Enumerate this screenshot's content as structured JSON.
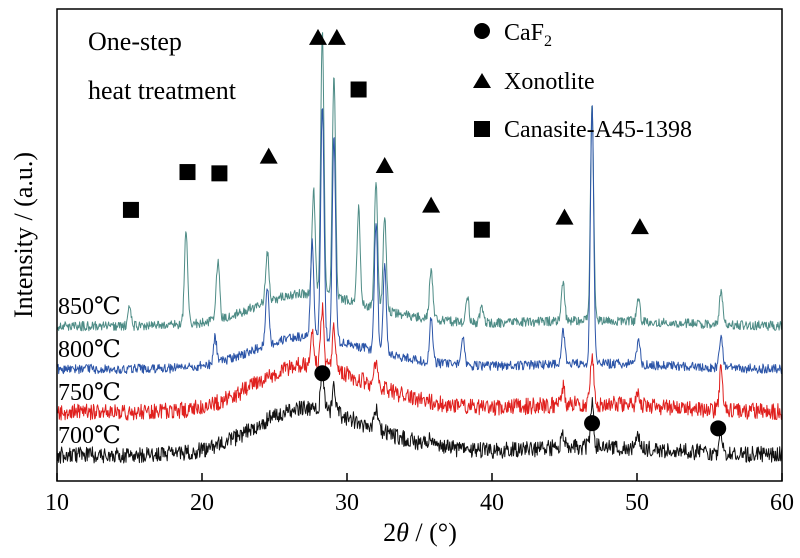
{
  "chart_data": {
    "type": "line",
    "xlabel": "2θ / (°)",
    "xlabel_parts": {
      "symbol": "2",
      "italic": "θ",
      "unit": " / (°)"
    },
    "ylabel": "Intensity / (a.u.)",
    "xlim": [
      10,
      60
    ],
    "xticks": [
      10,
      20,
      30,
      40,
      50,
      60
    ],
    "annotation_lines": [
      "One-step",
      "heat treatment"
    ],
    "legend": {
      "placement": "top-right",
      "entries": [
        {
          "marker": "circle",
          "label_main": "CaF",
          "label_sub": "2",
          "label": "CaF2"
        },
        {
          "marker": "triangle",
          "label": "Xonotlite"
        },
        {
          "marker": "square",
          "label": "Canasite-A45-1398"
        }
      ]
    },
    "series": [
      {
        "name": "850℃",
        "color": "#4e8c86",
        "offset": 0.3,
        "strong": false,
        "peaks": [
          [
            15.0,
            0.04
          ],
          [
            18.9,
            0.22
          ],
          [
            21.1,
            0.14
          ],
          [
            24.5,
            0.12
          ],
          [
            27.7,
            0.24
          ],
          [
            28.3,
            0.62
          ],
          [
            29.1,
            0.52
          ],
          [
            30.8,
            0.22
          ],
          [
            32.0,
            0.3
          ],
          [
            32.6,
            0.22
          ],
          [
            35.8,
            0.12
          ],
          [
            38.3,
            0.06
          ],
          [
            39.3,
            0.04
          ],
          [
            44.9,
            0.09
          ],
          [
            46.9,
            0.5
          ],
          [
            50.1,
            0.05
          ],
          [
            55.8,
            0.08
          ]
        ]
      },
      {
        "name": "800℃",
        "color": "#2c55a8",
        "offset": 0.2,
        "strong": false,
        "peaks": [
          [
            20.9,
            0.06
          ],
          [
            24.5,
            0.14
          ],
          [
            27.6,
            0.22
          ],
          [
            28.3,
            0.55
          ],
          [
            29.1,
            0.48
          ],
          [
            32.0,
            0.3
          ],
          [
            32.6,
            0.2
          ],
          [
            35.8,
            0.1
          ],
          [
            38.0,
            0.06
          ],
          [
            44.9,
            0.08
          ],
          [
            46.9,
            0.6
          ],
          [
            50.1,
            0.06
          ],
          [
            55.8,
            0.08
          ]
        ]
      },
      {
        "name": "750℃",
        "color": "#e0201e",
        "offset": 0.1,
        "strong": true,
        "peaks": [
          [
            27.6,
            0.08
          ],
          [
            28.3,
            0.14
          ],
          [
            29.1,
            0.1
          ],
          [
            32.0,
            0.06
          ],
          [
            44.9,
            0.04
          ],
          [
            46.9,
            0.12
          ],
          [
            50.1,
            0.03
          ],
          [
            55.8,
            0.1
          ]
        ]
      },
      {
        "name": "700℃",
        "color": "#111111",
        "offset": 0.0,
        "strong": true,
        "peaks": [
          [
            28.3,
            0.1
          ],
          [
            29.1,
            0.06
          ],
          [
            32.0,
            0.05
          ],
          [
            35.8,
            0.02
          ],
          [
            44.9,
            0.03
          ],
          [
            46.9,
            0.1
          ],
          [
            50.1,
            0.03
          ],
          [
            55.8,
            0.04
          ]
        ]
      }
    ],
    "markers": [
      {
        "type": "circle",
        "x": 28.3,
        "y": 0.19
      },
      {
        "type": "circle",
        "x": 46.9,
        "y": 0.074
      },
      {
        "type": "circle",
        "x": 55.6,
        "y": 0.062
      },
      {
        "type": "triangle",
        "x": 28.0,
        "y": 0.97
      },
      {
        "type": "triangle",
        "x": 29.3,
        "y": 0.97
      },
      {
        "type": "triangle",
        "x": 24.6,
        "y": 0.694
      },
      {
        "type": "triangle",
        "x": 32.6,
        "y": 0.672
      },
      {
        "type": "triangle",
        "x": 35.8,
        "y": 0.58
      },
      {
        "type": "triangle",
        "x": 45.0,
        "y": 0.552
      },
      {
        "type": "triangle",
        "x": 50.2,
        "y": 0.53
      },
      {
        "type": "square",
        "x": 30.8,
        "y": 0.85
      },
      {
        "type": "square",
        "x": 19.0,
        "y": 0.658
      },
      {
        "type": "square",
        "x": 21.2,
        "y": 0.655
      },
      {
        "type": "square",
        "x": 15.1,
        "y": 0.57
      },
      {
        "type": "square",
        "x": 39.3,
        "y": 0.524
      }
    ]
  }
}
